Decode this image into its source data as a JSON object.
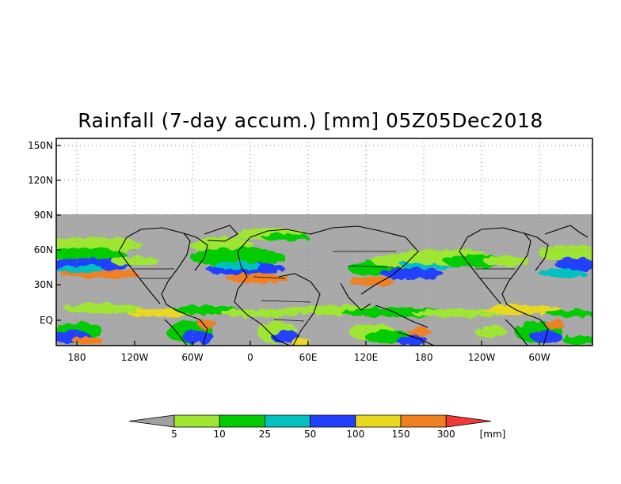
{
  "map": {
    "title": "Rainfall (7-day accum.) [mm] 05Z05Dec2018",
    "lat_ticks": [
      "150N",
      "120N",
      "90N",
      "60N",
      "30N",
      "EQ"
    ],
    "lon_ticks": [
      "180",
      "120W",
      "60W",
      "0",
      "60E",
      "120E",
      "180",
      "120W",
      "60W"
    ],
    "no_data_color": "#a9a9a9",
    "grid": true
  },
  "colorbar": {
    "unit": "[mm]",
    "labels": [
      "5",
      "10",
      "25",
      "50",
      "100",
      "150",
      "300"
    ],
    "colors": [
      "#a0a0a0",
      "#9fe632",
      "#00cc00",
      "#00c0c0",
      "#2040ff",
      "#e8d820",
      "#f08020",
      "#f03a3a"
    ]
  }
}
